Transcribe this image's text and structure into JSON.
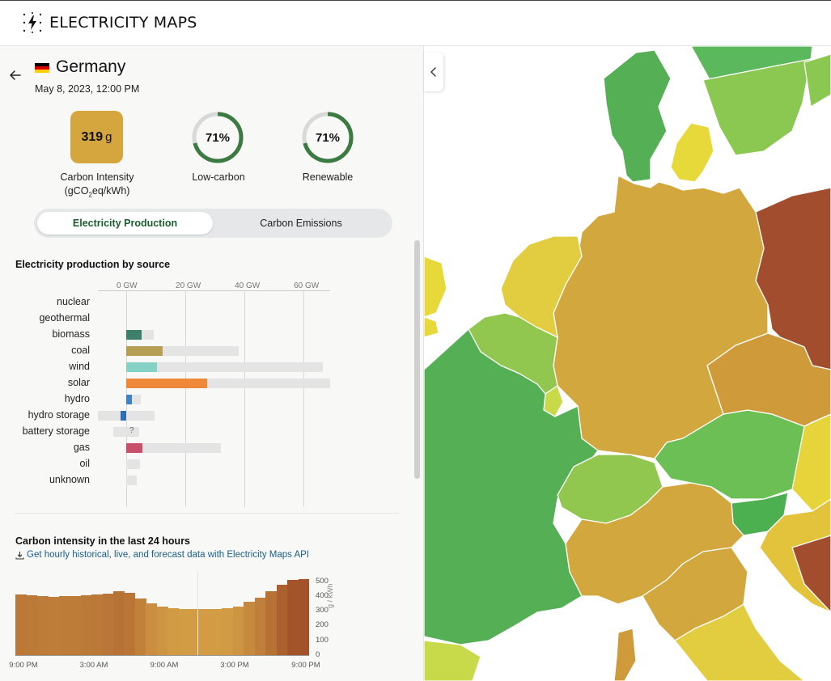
{
  "header": {
    "logo_text": "ELECTRICITY MAPS",
    "logo_icon": "lightning-bolt-icon"
  },
  "zone": {
    "name": "Germany",
    "datetime": "May 8, 2023, 12:00 PM",
    "flag_colors": [
      "#000000",
      "#dd0000",
      "#ffce00"
    ]
  },
  "metrics": {
    "carbon_intensity": {
      "value": "319",
      "unit": "g",
      "label": "Carbon Intensity",
      "sublabel_pre": "(gCO",
      "sublabel_sub": "2",
      "sublabel_post": "eq/kWh)",
      "color": "#d4a63d"
    },
    "low_carbon": {
      "value": "71%",
      "percent": 71,
      "label": "Low-carbon"
    },
    "renewable": {
      "value": "71%",
      "percent": 71,
      "label": "Renewable"
    },
    "ring_color": "#3b7a40"
  },
  "tabs": {
    "production": "Electricity Production",
    "emissions": "Carbon Emissions",
    "active": "production"
  },
  "production": {
    "title": "Electricity production by source",
    "axis_ticks": [
      "0 GW",
      "20 GW",
      "40 GW",
      "60 GW"
    ],
    "axis_max_gw": 69,
    "sources": [
      {
        "name": "nuclear",
        "prod": 0,
        "cap_min": 0,
        "cap_max": 0,
        "color": "#999999"
      },
      {
        "name": "geothermal",
        "prod": 0,
        "cap_min": 0,
        "cap_max": 0,
        "color": "#999999"
      },
      {
        "name": "biomass",
        "prod": 5.2,
        "cap_min": 0,
        "cap_max": 9.3,
        "color": "#3e7f6b"
      },
      {
        "name": "coal",
        "prod": 12.4,
        "cap_min": 0,
        "cap_max": 38,
        "color": "#b69e55"
      },
      {
        "name": "wind",
        "prod": 10.5,
        "cap_min": 0,
        "cap_max": 66.5,
        "color": "#86d1c6"
      },
      {
        "name": "solar",
        "prod": 27.3,
        "cap_min": 0,
        "cap_max": 69,
        "color": "#f0883a"
      },
      {
        "name": "hydro",
        "prod": 2,
        "cap_min": 0,
        "cap_max": 5,
        "color": "#3f82c6"
      },
      {
        "name": "hydro storage",
        "prod": -2,
        "cap_min": -9.7,
        "cap_max": 9.7,
        "color": "#2c6cb8"
      },
      {
        "name": "battery storage",
        "prod": 0,
        "cap_min": -4.5,
        "cap_max": 4.5,
        "color": "#999999",
        "unknown": true,
        "unknown_mark": "?"
      },
      {
        "name": "gas",
        "prod": 5.5,
        "cap_min": 0,
        "cap_max": 32,
        "color": "#c9506a"
      },
      {
        "name": "oil",
        "prod": 0,
        "cap_min": 0,
        "cap_max": 4.7,
        "color": "#999999"
      },
      {
        "name": "unknown",
        "prod": 0,
        "cap_min": 0,
        "cap_max": 3.6,
        "color": "#999999"
      }
    ]
  },
  "history": {
    "title": "Carbon intensity in the last 24 hours",
    "api_link": "Get hourly historical, live, and forecast data with Electricity Maps API",
    "y_ticks": [
      "500",
      "400",
      "300",
      "200",
      "100",
      "0"
    ],
    "y_unit": "g / kWh",
    "x_ticks": [
      "9:00 PM",
      "3:00 AM",
      "9:00 AM",
      "3:00 PM",
      "9:00 PM"
    ],
    "chart_data": {
      "type": "bar",
      "title": "Carbon intensity in the last 24 hours",
      "ylabel": "g / kWh",
      "ylim": [
        0,
        520
      ],
      "values": [
        410,
        405,
        400,
        395,
        398,
        400,
        405,
        408,
        415,
        430,
        420,
        385,
        350,
        330,
        315,
        310,
        310,
        310,
        310,
        315,
        330,
        360,
        390,
        430,
        475,
        510,
        515
      ]
    }
  },
  "map": {
    "collapse_icon": "chevron-left-icon"
  }
}
